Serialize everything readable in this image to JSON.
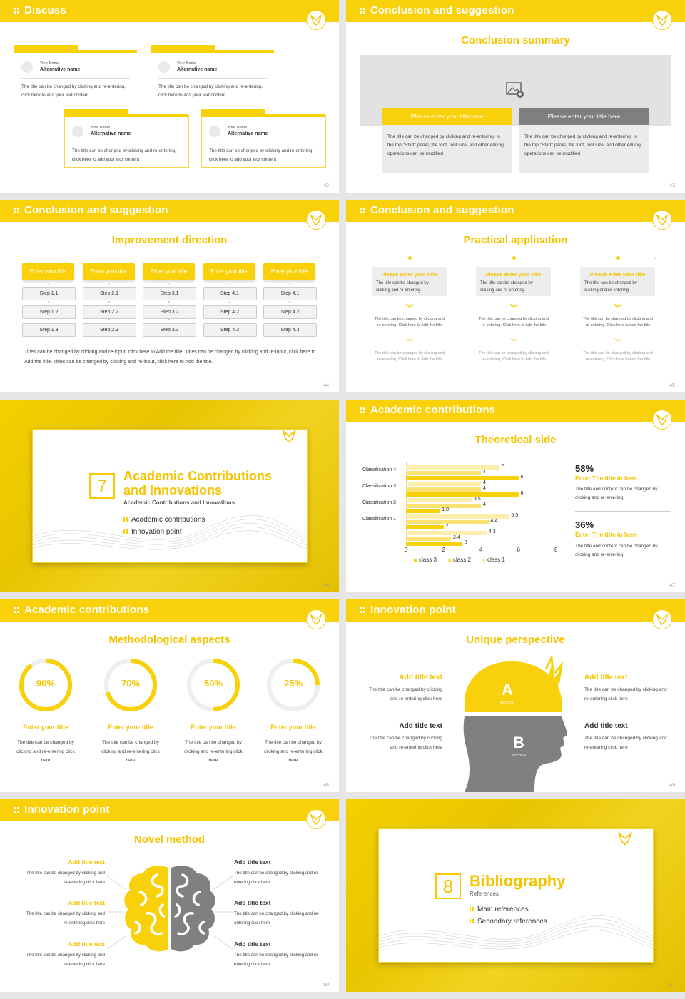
{
  "colors": {
    "accent": "#f9d10a",
    "gray": "#7f7f7f",
    "light": "#f9e28a"
  },
  "s42": {
    "title": "Discuss",
    "page": "42",
    "cards": [
      {
        "your_name": "Your Name",
        "alt": "Alternative name",
        "text": "The title can be changed by clicking and re-entering, click here to add your text content"
      },
      {
        "your_name": "Your Name",
        "alt": "Alternative name",
        "text": "The title can be changed by clicking and re-entering, click here to add your text content"
      },
      {
        "your_name": "Your Name",
        "alt": "Alternative name",
        "text": "The title can be changed by clicking and re-entering, click here to add your text content"
      },
      {
        "your_name": "Your Name",
        "alt": "Alternative name",
        "text": "The title can be changed by clicking and re-entering, click here to add your text content"
      }
    ]
  },
  "s43": {
    "title": "Conclusion and suggestion",
    "subtitle": "Conclusion summary",
    "page": "43",
    "b1": "Please enter your title here",
    "b2": "Please enter your title here",
    "t1": "The title can be changed by clicking and re-entering. In the top \"Start\" panel, the font, font size, and other editing operations can be modified",
    "t2": "The title can be changed by clicking and re-entering. In the top \"Start\" panel, the font, font size, and other editing operations can be modified"
  },
  "s44": {
    "title": "Conclusion and suggestion",
    "subtitle": "Improvement direction",
    "page": "44",
    "cols": [
      {
        "head": "Enter your title",
        "steps": [
          "Step 1.1",
          "Step 1.2",
          "Step 1.3"
        ]
      },
      {
        "head": "Enter your title",
        "steps": [
          "Step 2.1",
          "Step 2.2",
          "Step 2.3"
        ]
      },
      {
        "head": "Enter your title",
        "steps": [
          "Step 3.1",
          "Step 3.2",
          "Step 3.3"
        ]
      },
      {
        "head": "Enter your title",
        "steps": [
          "Step 4.1",
          "Step 4.2",
          "Step 4.3"
        ]
      },
      {
        "head": "Enter your title",
        "steps": [
          "Step 4.1",
          "Step 4.2",
          "Step 4.3"
        ]
      }
    ],
    "note": "Titles can be changed by clicking and re-input, click here to Add the title. Titles can be changed by clicking and re-input, click here to Add the title. Titles can be changed by clicking and re-input, click here to Add the title."
  },
  "s45": {
    "title": "Conclusion and suggestion",
    "subtitle": "Practical application",
    "page": "45",
    "cols": [
      {
        "head": "Please enter your title",
        "desc": "The title can be changed by clicking and re-entering.",
        "t1": "The title can be changed by clicking and re-entering. Click here to Add the title",
        "t2": "The title can be changed by clicking and re-entering. Click here to Add the title"
      },
      {
        "head": "Please enter your title",
        "desc": "The title can be changed by clicking and re-entering.",
        "t1": "The title can be changed by clicking and re-entering. Click here to Add the title",
        "t2": "The title can be changed by clicking and re-entering. Click here to Add the title"
      },
      {
        "head": "Please enter your title",
        "desc": "The title can be changed by clicking and re-entering.",
        "t1": "The title can be changed by clicking and re-entering. Click here to Add the title",
        "t2": "The title can be changed by clicking and re-entering. Click here to Add the title"
      }
    ]
  },
  "s46": {
    "num": "7",
    "title1": "Academic Contributions",
    "title2": "and Innovations",
    "sub": "Academic Contributions and Innovations",
    "items": [
      "Academic contributions",
      "Innovation point"
    ],
    "page": "46"
  },
  "s47": {
    "title": "Academic contributions",
    "subtitle": "Theoretical side",
    "page": "47",
    "right": [
      {
        "pct": "58%",
        "head": "Enter The title in here",
        "text": "The title and content can be changed by clicking and re-entering."
      },
      {
        "pct": "36%",
        "head": "Enter The title in here",
        "text": "The title and content can be changed by clicking and re-entering."
      }
    ]
  },
  "chart_data": {
    "type": "bar",
    "orientation": "horizontal",
    "categories": [
      "",
      "Classification 1",
      "Classification 2",
      "Classification 3",
      "Classification 4"
    ],
    "series": [
      {
        "name": "class 3",
        "color": "#f9d10a",
        "values": [
          3,
          2,
          1.8,
          6,
          6
        ]
      },
      {
        "name": "class 2",
        "color": "#fbe272",
        "values": [
          2.4,
          4.4,
          4,
          4,
          4
        ]
      },
      {
        "name": "class 1",
        "color": "#fdeeb0",
        "values": [
          4.3,
          5.5,
          3.5,
          4,
          5
        ]
      }
    ],
    "xlim": [
      0,
      8
    ],
    "xticks": [
      0,
      2,
      4,
      6,
      8
    ],
    "legend": "bottom",
    "grid": false
  },
  "s48": {
    "title": "Academic contributions",
    "subtitle": "Methodological aspects",
    "page": "48",
    "rings": [
      {
        "label": "90%",
        "value": 0.9,
        "head": "Enter your title",
        "text": "The title can be changed by clicking and re-entering click here"
      },
      {
        "label": "70%",
        "value": 0.7,
        "head": "Enter your title",
        "text": "The title can be changed by clicking and re-entering click here"
      },
      {
        "label": "50%",
        "value": 0.5,
        "head": "Enter your title",
        "text": "The title can be changed by clicking and re-entering click here"
      },
      {
        "label": "25%",
        "value": 0.25,
        "head": "Enter your title",
        "text": "The title can be changed by clicking and re-entering click here"
      }
    ]
  },
  "s49": {
    "title": "Innovation point",
    "subtitle": "Unique perspective",
    "page": "49",
    "a": "A",
    "b": "B",
    "section": "SECTION",
    "items": [
      {
        "head": "Add title text",
        "text": "The title can be changed by clicking and re-entering click here"
      },
      {
        "head": "Add title text",
        "text": "The title can be changed by clicking and re-entering click here"
      },
      {
        "head": "Add title text",
        "text": "The title can be changed by clicking and re-entering click here"
      },
      {
        "head": "Add title text",
        "text": "The title can be changed by clicking and re-entering click here"
      }
    ]
  },
  "s50": {
    "title": "Innovation point",
    "subtitle": "Novel method",
    "page": "50",
    "items": [
      {
        "head": "Add title text",
        "text": "The title can be changed by clicking and re-entering click here"
      },
      {
        "head": "Add title text",
        "text": "The title can be changed by clicking and re-entering click here"
      },
      {
        "head": "Add title text",
        "text": "The title can be changed by clicking and re-entering click here"
      },
      {
        "head": "Add title text",
        "text": "The title can be changed by clicking and re-entering click here"
      },
      {
        "head": "Add title text",
        "text": "The title can be changed by clicking and re-entering click here"
      },
      {
        "head": "Add title text",
        "text": "The title can be changed by clicking and re-entering click here"
      }
    ]
  },
  "s51": {
    "num": "8",
    "title": "Bibliography",
    "sub": "References",
    "items": [
      "Main references",
      "Secondary references"
    ],
    "page": "51"
  }
}
